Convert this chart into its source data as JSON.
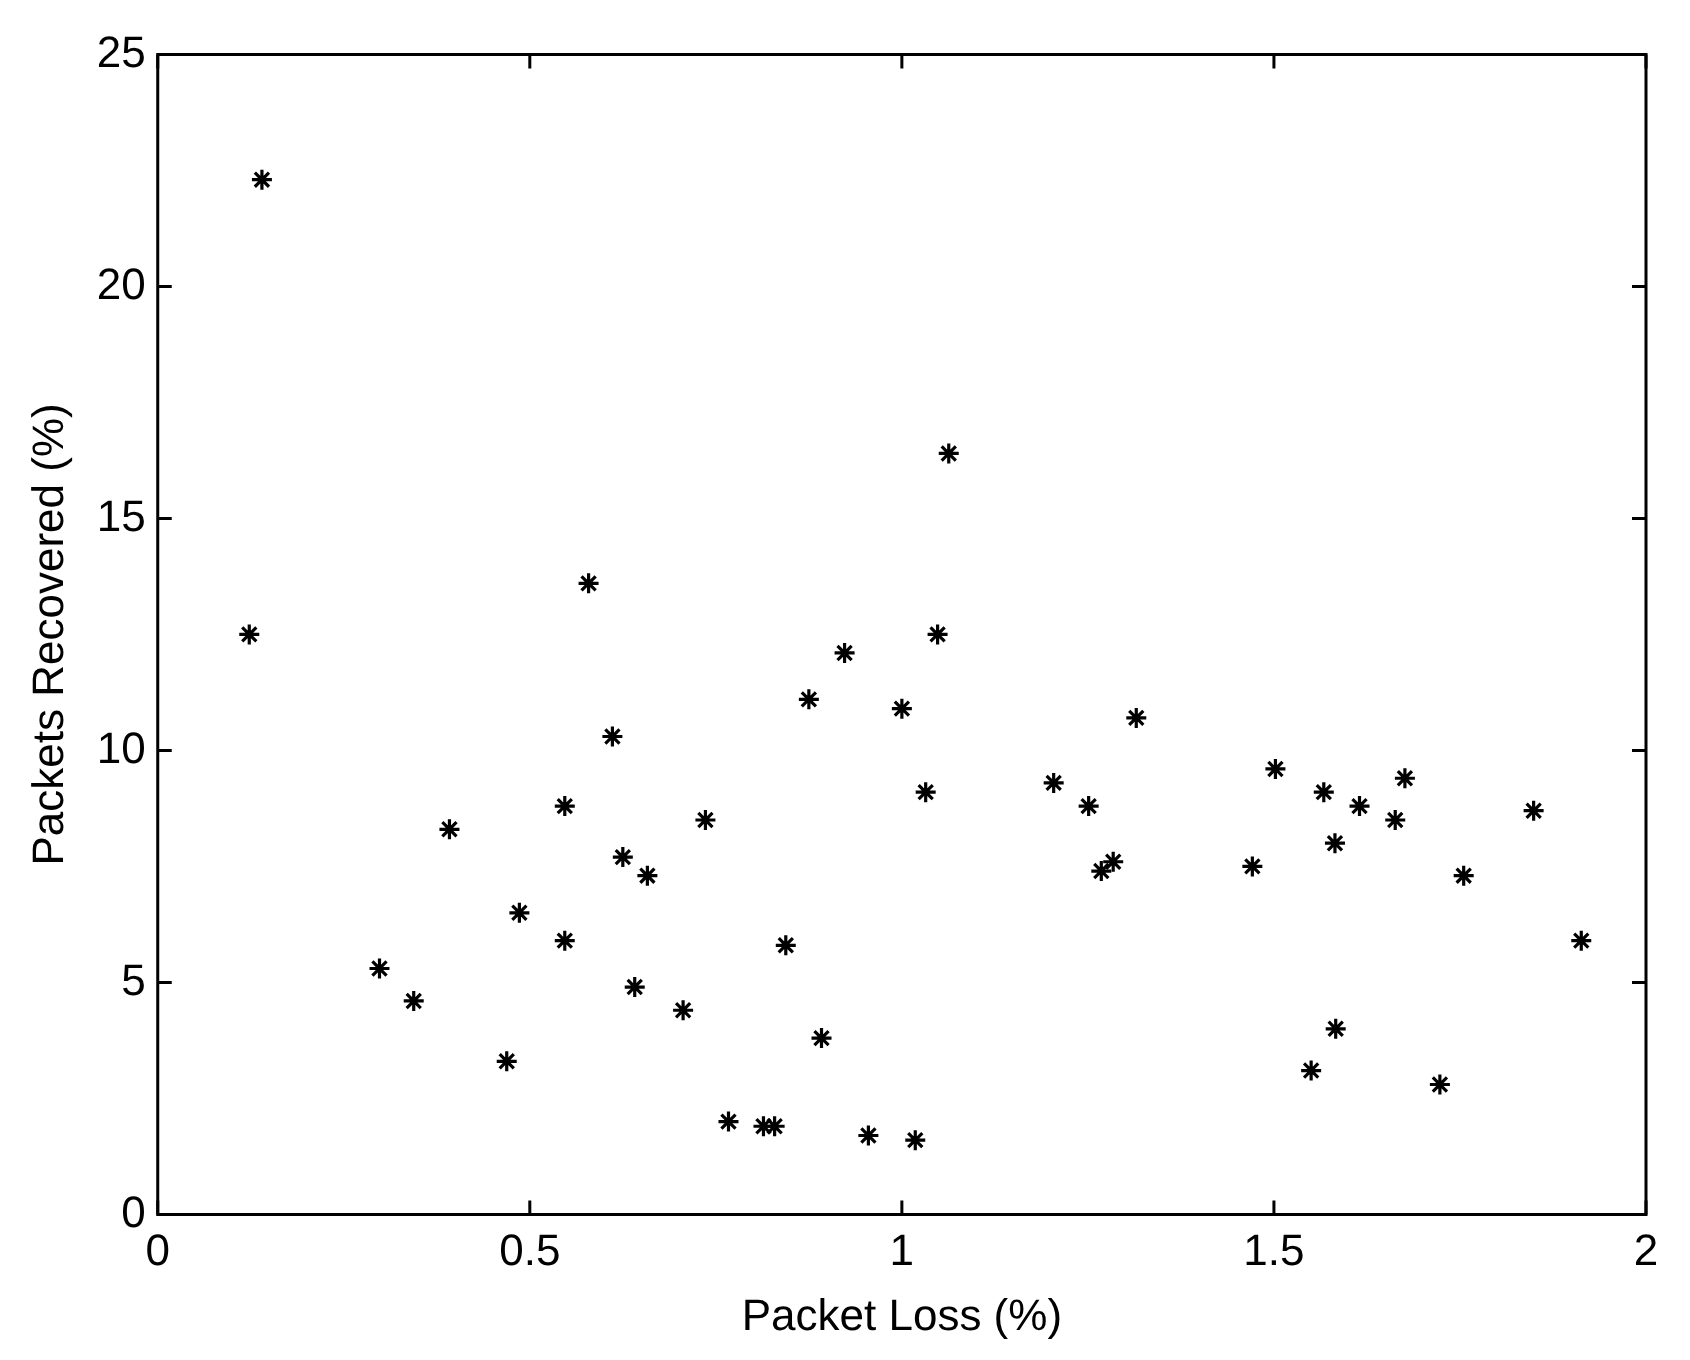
{
  "chart_data": {
    "type": "scatter",
    "xlabel": "Packet Loss (%)",
    "ylabel": "Packets Recovered (%)",
    "xlim": [
      0,
      2
    ],
    "xticks": [
      0,
      0.5,
      1,
      1.5,
      2
    ],
    "ylim": [
      0,
      25
    ],
    "yticks": [
      0,
      5,
      10,
      15,
      20,
      25
    ],
    "grid": false,
    "marker": "cross",
    "series": [
      {
        "color": "#000000",
        "x": [
          0.14,
          0.123,
          0.579,
          0.923,
          1.063,
          1.048,
          0.875,
          0.611,
          0.547,
          0.392,
          0.736,
          0.625,
          0.658,
          0.486,
          0.547,
          0.298,
          0.344,
          0.641,
          0.844,
          0.706,
          0.892,
          0.469,
          0.767,
          0.814,
          0.829,
          0.955,
          1.0,
          1.032,
          1.315,
          1.204,
          1.251,
          1.268,
          1.284,
          1.471,
          1.502,
          1.567,
          1.615,
          1.676,
          1.663,
          1.582,
          1.849,
          1.755,
          1.913,
          1.583,
          1.55,
          1.723,
          1.018
        ],
        "values": [
          22.3,
          12.5,
          13.6,
          12.1,
          16.4,
          12.5,
          11.1,
          10.3,
          8.8,
          8.3,
          8.5,
          7.7,
          7.3,
          6.5,
          5.9,
          5.3,
          4.6,
          4.9,
          5.8,
          4.4,
          3.8,
          3.3,
          2.0,
          1.9,
          1.9,
          1.7,
          10.9,
          9.1,
          10.7,
          9.3,
          8.8,
          7.4,
          7.6,
          7.5,
          9.6,
          9.1,
          8.8,
          9.4,
          8.5,
          8.0,
          8.7,
          7.3,
          5.9,
          4.0,
          3.1,
          2.8,
          1.6
        ]
      }
    ]
  }
}
